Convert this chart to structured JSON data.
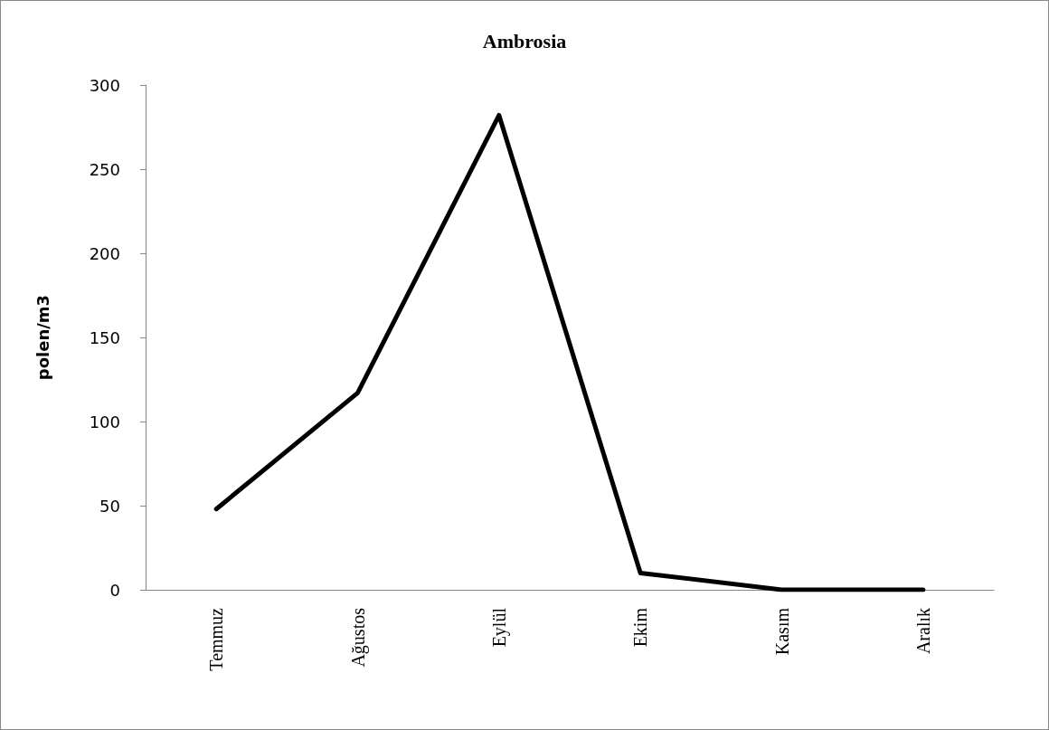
{
  "chart_data": {
    "type": "line",
    "title": "Ambrosia",
    "ylabel": "polen/m3",
    "categories": [
      "Temmuz",
      "Ağustos",
      "Eylül",
      "Ekim",
      "Kasım",
      "Aralık"
    ],
    "series": [
      {
        "color": "#000000",
        "values": [
          48,
          117,
          282,
          10,
          0,
          0
        ]
      }
    ],
    "ylim": [
      0,
      300
    ],
    "yticks": [
      0,
      50,
      100,
      150,
      200,
      250,
      300
    ],
    "grid": false,
    "marker": "none",
    "line_style": "solid"
  }
}
